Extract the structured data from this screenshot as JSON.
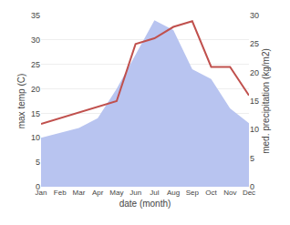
{
  "chart_data": {
    "type": "area",
    "categories": [
      "Jan",
      "Feb",
      "Mar",
      "Apr",
      "May",
      "Jun",
      "Jul",
      "Aug",
      "Sep",
      "Oct",
      "Nov",
      "Dec"
    ],
    "xlabel": "date (month)",
    "ylabel": "max temp (C)",
    "y2label": "med. precipitation (kg/m2)",
    "series": [
      {
        "type": "area",
        "color": "#b8c4f0",
        "values": [
          10,
          11,
          12,
          14,
          20,
          27,
          34,
          32,
          24,
          22,
          16,
          13
        ]
      },
      {
        "type": "line",
        "color": "#c0504d",
        "axis": "y2",
        "values": [
          11,
          12,
          13,
          14,
          15,
          25,
          26,
          28,
          29,
          21,
          21,
          16
        ]
      }
    ],
    "ylim": [
      0,
      35
    ],
    "yticks": [
      0,
      5,
      10,
      15,
      20,
      25,
      30,
      35
    ],
    "y2lim": [
      0,
      30
    ],
    "y2ticks": [
      0,
      5,
      10,
      15,
      20,
      25,
      30
    ],
    "grid": true
  }
}
